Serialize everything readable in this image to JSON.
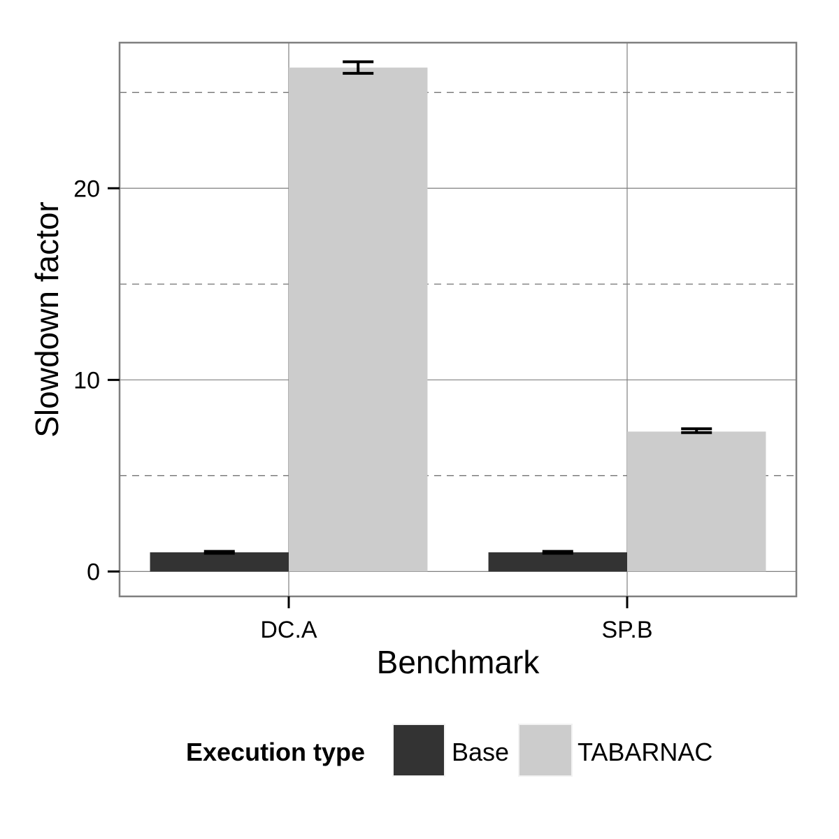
{
  "chart_data": {
    "type": "bar",
    "categories": [
      "DC.A",
      "SP.B"
    ],
    "series": [
      {
        "name": "Base",
        "values": [
          1.0,
          1.0
        ],
        "error": [
          [
            0.95,
            1.05
          ],
          [
            0.95,
            1.05
          ]
        ],
        "color": "#333333"
      },
      {
        "name": "TABARNAC",
        "values": [
          26.3,
          7.3
        ],
        "error": [
          [
            26.0,
            26.6
          ],
          [
            7.25,
            7.45
          ]
        ],
        "color": "#cccccc"
      }
    ],
    "title": "",
    "xlabel": "Benchmark",
    "ylabel": "Slowdown factor",
    "ylim": [
      -1.3,
      27.6
    ],
    "y_ticks": [
      0,
      10,
      20
    ],
    "y_tick_labels": [
      "0",
      "10",
      "20"
    ],
    "y_minor_gridlines": [
      5,
      15,
      25
    ],
    "legend": {
      "title": "Execution type",
      "position": "bottom"
    },
    "grid": true,
    "panel_border_color": "#7f7f7f",
    "gridline_color": "#7f7f7f"
  }
}
